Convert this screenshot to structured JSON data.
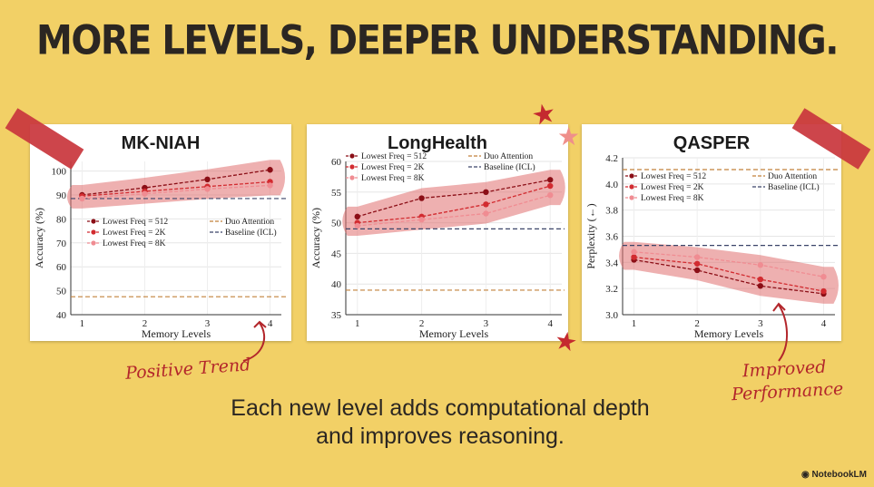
{
  "headline": "MORE LEVELS, DEEPER UNDERSTANDING.",
  "caption_line1": "Each new level adds computational depth",
  "caption_line2": "and improves reasoning.",
  "annotation_left": "Positive Trend",
  "annotation_right_line1": "Improved",
  "annotation_right_line2": "Performance",
  "brand": "NotebookLM",
  "colors": {
    "background": "#f2d066",
    "tape": "#c9373d",
    "highlight": "#e07070",
    "series_512": "#8b0e16",
    "series_2k": "#d22b30",
    "series_8k": "#f08c92",
    "duo": "#c2813a",
    "baseline": "#3b4569",
    "annotation": "#b3262b"
  },
  "icons": [
    "star-icon",
    "arrow-icon",
    "notebooklm-logo-icon"
  ],
  "chart_data": [
    {
      "type": "line",
      "title": "MK-NIAH",
      "xlabel": "Memory Levels",
      "ylabel": "Accuracy (%)",
      "x": [
        1,
        2,
        3,
        4
      ],
      "xticks": [
        "1",
        "2",
        "3",
        "4"
      ],
      "ylim": [
        40,
        104
      ],
      "yticks": [
        40,
        50,
        60,
        70,
        80,
        90,
        100
      ],
      "grid": true,
      "legend_position": "center",
      "series": [
        {
          "name": "Lowest Freq = 512",
          "values": [
            90,
            93,
            96.5,
            100.5
          ]
        },
        {
          "name": "Lowest Freq = 2K",
          "values": [
            89.5,
            91.5,
            93.5,
            95.5
          ]
        },
        {
          "name": "Lowest Freq = 8K",
          "values": [
            88.5,
            90.5,
            92.5,
            94
          ]
        }
      ],
      "reference_lines": [
        {
          "name": "Duo Attention",
          "value": 47.5
        },
        {
          "name": "Baseline (ICL)",
          "value": 88.5
        }
      ]
    },
    {
      "type": "line",
      "title": "LongHealth",
      "xlabel": "Memory Levels",
      "ylabel": "Accuracy (%)",
      "x": [
        1,
        2,
        3,
        4
      ],
      "xticks": [
        "1",
        "2",
        "3",
        "4"
      ],
      "ylim": [
        35,
        60
      ],
      "yticks": [
        35,
        40,
        45,
        50,
        55,
        60
      ],
      "grid": true,
      "legend_position": "top",
      "series": [
        {
          "name": "Lowest Freq = 512",
          "values": [
            51,
            54,
            55,
            57
          ]
        },
        {
          "name": "Lowest Freq = 2K",
          "values": [
            50,
            51,
            53,
            56
          ]
        },
        {
          "name": "Lowest Freq = 8K",
          "values": [
            49.5,
            50.5,
            51.5,
            54.5
          ]
        }
      ],
      "reference_lines": [
        {
          "name": "Duo Attention",
          "value": 39
        },
        {
          "name": "Baseline (ICL)",
          "value": 49
        }
      ]
    },
    {
      "type": "line",
      "title": "QASPER",
      "xlabel": "Memory Levels",
      "ylabel": "Perplexity (←)",
      "x": [
        1,
        2,
        3,
        4
      ],
      "xticks": [
        "1",
        "2",
        "3",
        "4"
      ],
      "ylim": [
        3.0,
        4.2
      ],
      "yticks": [
        3.0,
        3.2,
        3.4,
        3.6,
        3.8,
        4.0,
        4.2
      ],
      "grid": true,
      "legend_position": "top",
      "series": [
        {
          "name": "Lowest Freq = 512",
          "values": [
            3.42,
            3.34,
            3.22,
            3.16
          ]
        },
        {
          "name": "Lowest Freq = 2K",
          "values": [
            3.44,
            3.39,
            3.27,
            3.18
          ]
        },
        {
          "name": "Lowest Freq = 8K",
          "values": [
            3.48,
            3.44,
            3.38,
            3.29
          ]
        }
      ],
      "reference_lines": [
        {
          "name": "Duo Attention",
          "value": 4.11
        },
        {
          "name": "Baseline (ICL)",
          "value": 3.53
        }
      ]
    }
  ]
}
